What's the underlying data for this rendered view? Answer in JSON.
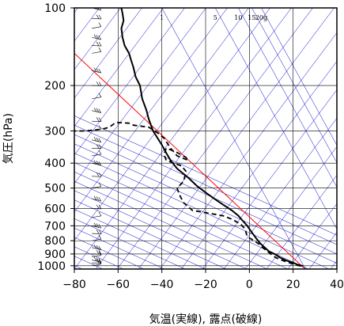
{
  "chart_data": {
    "type": "line",
    "title": "",
    "xlabel": "気温(実線), 露点(破線)",
    "ylabel": "気圧(hPa)",
    "xlim": [
      -80,
      40
    ],
    "ylim": [
      1030,
      100
    ],
    "y_scale": "log",
    "x_ticks": [
      "−80",
      "−60",
      "−40",
      "−20",
      "0",
      "20",
      "40"
    ],
    "x_tick_values": [
      -80,
      -60,
      -40,
      -20,
      0,
      20,
      40
    ],
    "y_ticks": [
      "100",
      "200",
      "300",
      "400",
      "500",
      "600",
      "700",
      "800",
      "900",
      "1000"
    ],
    "y_tick_values": [
      100,
      200,
      300,
      400,
      500,
      600,
      700,
      800,
      900,
      1000
    ],
    "mixing_ratio_labels": [
      "1",
      "5",
      "10",
      "15",
      "20g"
    ],
    "mixing_ratio_values": [
      1,
      5,
      10,
      15,
      20
    ],
    "skew_reference_line": {
      "name": "",
      "color": "#ff0000",
      "x": [
        -80,
        25.5
      ],
      "p": [
        150,
        1030
      ]
    },
    "series": [
      {
        "name": "",
        "style": "solid",
        "color": "#000000",
        "x": [
          24.5,
          22,
          20,
          17,
          14,
          12,
          9,
          7,
          5,
          3,
          1,
          -1,
          -3,
          -5,
          -8,
          -12,
          -16,
          -20,
          -24,
          -28,
          -33,
          -36,
          -38,
          -40,
          -44,
          -46,
          -47,
          -49,
          -50,
          -52,
          -53,
          -54,
          -55,
          -57,
          -58,
          -58.5,
          -57.5,
          -58,
          -58.5
        ],
        "p": [
          1003,
          990,
          975,
          955,
          930,
          905,
          880,
          850,
          820,
          780,
          740,
          700,
          670,
          640,
          610,
          580,
          550,
          520,
          490,
          455,
          420,
          390,
          365,
          340,
          300,
          270,
          250,
          225,
          200,
          185,
          170,
          160,
          150,
          140,
          130,
          120,
          112,
          105,
          100
        ]
      },
      {
        "name": "",
        "style": "dashed",
        "color": "#000000",
        "x": [
          23.5,
          20,
          16,
          12,
          9,
          6,
          5,
          -1,
          -2,
          -4,
          -8,
          -12,
          -26,
          -30,
          -32,
          -33,
          -30,
          -29,
          -31,
          -38,
          -39,
          -38,
          -34,
          -29,
          -28,
          -33,
          -36,
          -39,
          -42,
          -46,
          -53,
          -55,
          -61,
          -62,
          -64,
          -67,
          -75,
          -80
        ],
        "p": [
          1003,
          985,
          960,
          930,
          890,
          850,
          830,
          770,
          720,
          690,
          660,
          640,
          610,
          570,
          530,
          500,
          470,
          430,
          410,
          390,
          370,
          350,
          360,
          380,
          390,
          375,
          350,
          320,
          305,
          290,
          285,
          280,
          278,
          282,
          290,
          295,
          300,
          300
        ]
      }
    ],
    "wind_barbs": {
      "x_position": -72,
      "pressure_levels": [
        1000,
        975,
        950,
        925,
        900,
        850,
        800,
        750,
        700,
        650,
        600,
        550,
        500,
        450,
        400,
        375,
        350,
        325,
        300,
        275,
        250,
        225,
        200,
        175,
        150,
        140,
        130,
        120,
        110,
        100
      ]
    }
  },
  "colors": {
    "isotherm": "#0000cc",
    "grid": "#000000",
    "temperature": "#000000",
    "dewpoint": "#000000",
    "reference": "#ff0000"
  }
}
